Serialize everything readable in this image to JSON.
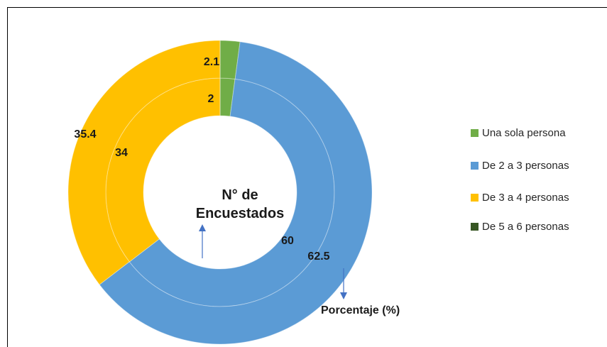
{
  "chart_data": {
    "type": "donut",
    "categories": [
      "Una sola persona",
      "De 2 a 3 personas",
      "De 3 a 4 personas",
      "De 5 a 6 personas"
    ],
    "colors": [
      "#70ad47",
      "#5b9bd5",
      "#ffc000",
      "#375623"
    ],
    "series": [
      {
        "name": "N° de Encuestados",
        "values": [
          2,
          60,
          34,
          0
        ]
      },
      {
        "name": "Porcentaje (%)",
        "values": [
          2.1,
          62.5,
          35.4,
          0
        ]
      }
    ],
    "legend": "right"
  }
}
